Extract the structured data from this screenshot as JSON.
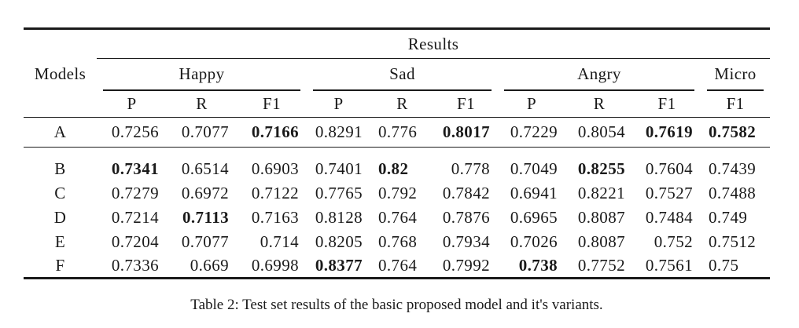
{
  "table": {
    "top_header": "Results",
    "models_header": "Models",
    "groups": [
      {
        "label": "Happy",
        "cols": [
          "P",
          "R",
          "F1"
        ]
      },
      {
        "label": "Sad",
        "cols": [
          "P",
          "R",
          "F1"
        ]
      },
      {
        "label": "Angry",
        "cols": [
          "P",
          "R",
          "F1"
        ]
      },
      {
        "label": "Micro",
        "cols": [
          "F1"
        ]
      }
    ],
    "rows": [
      {
        "model": "A",
        "values": [
          "0.7256",
          "0.7077",
          "0.7166",
          "0.8291",
          "0.776",
          "0.8017",
          "0.7229",
          "0.8054",
          "0.7619",
          "0.7582"
        ],
        "bold": [
          2,
          5,
          8,
          9
        ]
      },
      {
        "model": "B",
        "values": [
          "0.7341",
          "0.6514",
          "0.6903",
          "0.7401",
          "0.82",
          "0.778",
          "0.7049",
          "0.8255",
          "0.7604",
          "0.7439"
        ],
        "bold": [
          0,
          4,
          7
        ]
      },
      {
        "model": "C",
        "values": [
          "0.7279",
          "0.6972",
          "0.7122",
          "0.7765",
          "0.792",
          "0.7842",
          "0.6941",
          "0.8221",
          "0.7527",
          "0.7488"
        ],
        "bold": []
      },
      {
        "model": "D",
        "values": [
          "0.7214",
          "0.7113",
          "0.7163",
          "0.8128",
          "0.764",
          "0.7876",
          "0.6965",
          "0.8087",
          "0.7484",
          "0.749"
        ],
        "bold": [
          1
        ]
      },
      {
        "model": "E",
        "values": [
          "0.7204",
          "0.7077",
          "0.714",
          "0.8205",
          "0.768",
          "0.7934",
          "0.7026",
          "0.8087",
          "0.752",
          "0.7512"
        ],
        "bold": []
      },
      {
        "model": "F",
        "values": [
          "0.7336",
          "0.669",
          "0.6998",
          "0.8377",
          "0.764",
          "0.7992",
          "0.738",
          "0.7752",
          "0.7561",
          "0.75"
        ],
        "bold": [
          3,
          6
        ]
      }
    ]
  },
  "caption": "Table 2: Test set results of the basic proposed model and it's variants."
}
